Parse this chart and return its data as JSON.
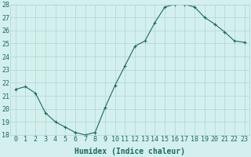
{
  "xlabel": "Humidex (Indice chaleur)",
  "x": [
    0,
    1,
    2,
    3,
    4,
    5,
    6,
    7,
    8,
    9,
    10,
    11,
    12,
    13,
    14,
    15,
    16,
    17,
    18,
    19,
    20,
    21,
    22,
    23
  ],
  "y": [
    21.5,
    21.7,
    21.2,
    19.7,
    19.0,
    18.6,
    18.2,
    18.0,
    18.2,
    20.1,
    21.8,
    23.3,
    24.8,
    25.2,
    26.6,
    27.8,
    28.0,
    28.0,
    27.8,
    27.0,
    26.5,
    25.9,
    25.2,
    25.1
  ],
  "line_color": "#1a6b5a",
  "marker": "+",
  "marker_size": 3,
  "background_color": "#d4f0ee",
  "grid_color": "#b0d4d0",
  "ylim": [
    18,
    28
  ],
  "xlim": [
    -0.5,
    23.5
  ],
  "yticks": [
    18,
    19,
    20,
    21,
    22,
    23,
    24,
    25,
    26,
    27,
    28
  ],
  "tick_fontsize": 6,
  "xlabel_fontsize": 7,
  "label_color": "#1a6b5a"
}
